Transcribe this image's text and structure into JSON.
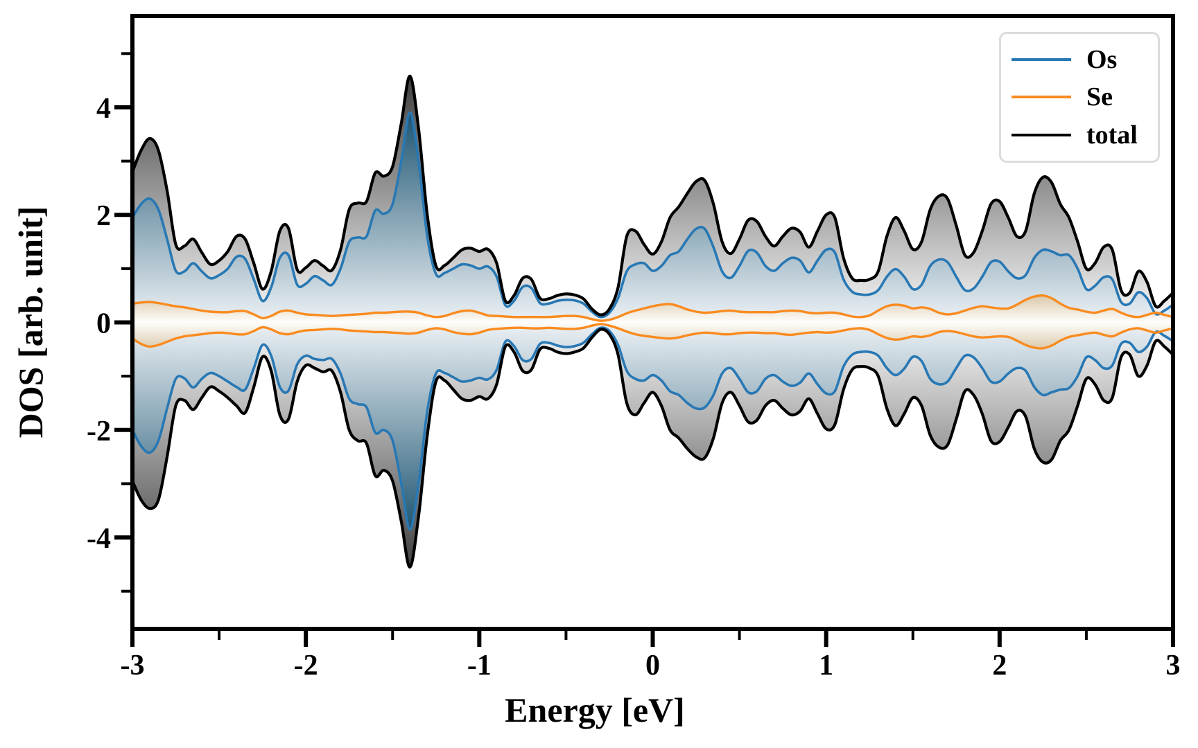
{
  "figure": {
    "background": "#ffffff",
    "xlabel": "Energy [eV]",
    "ylabel": "DOS [arb. unit]",
    "xlim": [
      -3,
      3
    ],
    "ylim": [
      -5.7,
      5.7
    ],
    "x_major_ticks": [
      -3,
      -2,
      -1,
      0,
      1,
      2,
      3
    ],
    "x_major_tick_labels": [
      "-3",
      "-2",
      "-1",
      "0",
      "1",
      "2",
      "3"
    ],
    "x_minor_ticks": [
      -2.5,
      -1.5,
      -0.5,
      0.5,
      1.5,
      2.5
    ],
    "y_major_ticks": [
      -4,
      -2,
      0,
      2,
      4
    ],
    "y_major_tick_labels": [
      "-4",
      "-2",
      "0",
      "2",
      "4"
    ],
    "y_minor_ticks": [
      -5,
      -3,
      -1,
      1,
      3,
      5
    ],
    "grid": false
  },
  "legend": {
    "position": "upper-right",
    "entries": [
      {
        "label": "Os",
        "color": "#2878b4"
      },
      {
        "label": "Se",
        "color": "#f98b20"
      },
      {
        "label": "total",
        "color": "#000000"
      }
    ]
  },
  "chart_data": {
    "type": "area",
    "title": "",
    "xlabel": "Energy [eV]",
    "ylabel": "DOS [arb. unit]",
    "description": "Spin-resolved density of states: positive values = spin-up branch, negative values = spin-down branch; gradient-filled areas under total, Os and Se curves.",
    "x": [
      -3.0,
      -2.95,
      -2.9,
      -2.85,
      -2.8,
      -2.75,
      -2.7,
      -2.65,
      -2.6,
      -2.55,
      -2.5,
      -2.45,
      -2.4,
      -2.35,
      -2.3,
      -2.25,
      -2.2,
      -2.15,
      -2.1,
      -2.05,
      -2.0,
      -1.95,
      -1.9,
      -1.85,
      -1.8,
      -1.75,
      -1.7,
      -1.65,
      -1.6,
      -1.55,
      -1.5,
      -1.45,
      -1.4,
      -1.35,
      -1.3,
      -1.25,
      -1.2,
      -1.15,
      -1.1,
      -1.05,
      -1.0,
      -0.95,
      -0.9,
      -0.85,
      -0.8,
      -0.75,
      -0.7,
      -0.65,
      -0.6,
      -0.55,
      -0.5,
      -0.45,
      -0.4,
      -0.35,
      -0.3,
      -0.25,
      -0.2,
      -0.15,
      -0.1,
      -0.05,
      0.0,
      0.05,
      0.1,
      0.15,
      0.2,
      0.25,
      0.3,
      0.35,
      0.4,
      0.45,
      0.5,
      0.55,
      0.6,
      0.65,
      0.7,
      0.75,
      0.8,
      0.85,
      0.9,
      0.95,
      1.0,
      1.05,
      1.1,
      1.15,
      1.2,
      1.25,
      1.3,
      1.35,
      1.4,
      1.45,
      1.5,
      1.55,
      1.6,
      1.65,
      1.7,
      1.75,
      1.8,
      1.85,
      1.9,
      1.95,
      2.0,
      2.05,
      2.1,
      2.15,
      2.2,
      2.25,
      2.3,
      2.35,
      2.4,
      2.45,
      2.5,
      2.55,
      2.6,
      2.65,
      2.7,
      2.75,
      2.8,
      2.85,
      2.9,
      2.95,
      3.0
    ],
    "series": [
      {
        "name": "total",
        "line_color": "#000000",
        "line_width": 4.2,
        "fill_edge_color": "#3a3a3a",
        "fill_center_color": "#fbfbfb",
        "gradient_extent": 4.7,
        "spin_up": [
          2.8,
          3.2,
          3.42,
          3.2,
          2.45,
          1.45,
          1.42,
          1.55,
          1.3,
          1.08,
          1.15,
          1.32,
          1.6,
          1.55,
          1.1,
          0.62,
          0.95,
          1.7,
          1.75,
          0.98,
          1.02,
          1.15,
          1.05,
          0.97,
          1.35,
          2.1,
          2.22,
          2.25,
          2.78,
          2.72,
          2.9,
          3.7,
          4.58,
          3.6,
          2.0,
          1.05,
          1.06,
          1.2,
          1.35,
          1.38,
          1.32,
          1.36,
          1.1,
          0.4,
          0.5,
          0.82,
          0.8,
          0.45,
          0.44,
          0.5,
          0.53,
          0.51,
          0.44,
          0.25,
          0.14,
          0.25,
          0.65,
          1.6,
          1.7,
          1.45,
          1.27,
          1.5,
          1.95,
          2.15,
          2.4,
          2.62,
          2.64,
          2.2,
          1.5,
          1.28,
          1.55,
          1.9,
          1.88,
          1.6,
          1.42,
          1.6,
          1.75,
          1.68,
          1.4,
          1.7,
          2.0,
          1.95,
          1.2,
          0.82,
          0.78,
          0.8,
          0.95,
          1.6,
          1.95,
          1.7,
          1.36,
          1.5,
          2.1,
          2.35,
          2.3,
          1.8,
          1.25,
          1.3,
          1.7,
          2.2,
          2.25,
          1.95,
          1.6,
          1.7,
          2.4,
          2.7,
          2.6,
          2.2,
          1.95,
          1.5,
          1.0,
          1.1,
          1.4,
          1.35,
          0.6,
          0.55,
          0.95,
          0.75,
          0.3,
          0.4,
          0.55
        ],
        "spin_down": [
          -2.95,
          -3.3,
          -3.46,
          -3.3,
          -2.5,
          -1.55,
          -1.45,
          -1.62,
          -1.4,
          -1.2,
          -1.28,
          -1.4,
          -1.55,
          -1.68,
          -1.2,
          -0.64,
          -0.9,
          -1.72,
          -1.8,
          -1.1,
          -0.8,
          -0.85,
          -0.92,
          -0.9,
          -1.3,
          -2.0,
          -2.2,
          -2.25,
          -2.85,
          -2.75,
          -2.95,
          -3.7,
          -4.55,
          -3.6,
          -2.1,
          -1.1,
          -1.08,
          -1.25,
          -1.42,
          -1.45,
          -1.38,
          -1.42,
          -1.15,
          -0.45,
          -0.55,
          -0.9,
          -0.88,
          -0.5,
          -0.48,
          -0.55,
          -0.58,
          -0.55,
          -0.48,
          -0.28,
          -0.13,
          -0.22,
          -0.6,
          -1.5,
          -1.72,
          -1.5,
          -1.3,
          -1.55,
          -2.0,
          -2.15,
          -2.35,
          -2.5,
          -2.52,
          -2.15,
          -1.5,
          -1.3,
          -1.55,
          -1.85,
          -1.82,
          -1.55,
          -1.45,
          -1.6,
          -1.72,
          -1.65,
          -1.42,
          -1.7,
          -1.98,
          -1.9,
          -1.25,
          -0.88,
          -0.82,
          -0.85,
          -1.0,
          -1.6,
          -1.92,
          -1.7,
          -1.4,
          -1.55,
          -2.1,
          -2.32,
          -2.28,
          -1.8,
          -1.28,
          -1.35,
          -1.7,
          -2.2,
          -2.22,
          -1.95,
          -1.65,
          -1.75,
          -2.35,
          -2.6,
          -2.55,
          -2.2,
          -2.0,
          -1.55,
          -1.05,
          -1.15,
          -1.45,
          -1.4,
          -0.65,
          -0.6,
          -1.0,
          -0.8,
          -0.35,
          -0.45,
          -0.6
        ]
      },
      {
        "name": "Os",
        "line_color": "#2878b4",
        "line_width": 3.6,
        "fill_edge_color": "#17506e",
        "fill_center_color": "#edf2f6",
        "gradient_extent": 4.0,
        "spin_up": [
          1.95,
          2.2,
          2.3,
          2.1,
          1.55,
          0.96,
          0.95,
          1.1,
          0.95,
          0.82,
          0.88,
          1.0,
          1.22,
          1.18,
          0.8,
          0.4,
          0.65,
          1.2,
          1.25,
          0.7,
          0.72,
          0.86,
          0.78,
          0.7,
          1.0,
          1.5,
          1.58,
          1.6,
          2.08,
          2.02,
          2.2,
          3.0,
          3.9,
          3.0,
          1.6,
          0.9,
          0.92,
          1.0,
          1.08,
          1.06,
          1.0,
          1.04,
          0.85,
          0.32,
          0.4,
          0.66,
          0.64,
          0.36,
          0.35,
          0.4,
          0.42,
          0.41,
          0.35,
          0.2,
          0.1,
          0.18,
          0.45,
          0.95,
          1.08,
          1.1,
          0.96,
          1.05,
          1.25,
          1.32,
          1.55,
          1.74,
          1.74,
          1.4,
          0.95,
          0.83,
          1.05,
          1.33,
          1.3,
          1.05,
          0.96,
          1.1,
          1.2,
          1.15,
          0.93,
          1.15,
          1.35,
          1.3,
          0.8,
          0.57,
          0.52,
          0.52,
          0.6,
          0.85,
          0.99,
          0.85,
          0.62,
          0.7,
          1.05,
          1.17,
          1.12,
          0.85,
          0.6,
          0.63,
          0.85,
          1.12,
          1.13,
          0.95,
          0.82,
          0.88,
          1.2,
          1.35,
          1.32,
          1.25,
          1.25,
          1.0,
          0.62,
          0.68,
          0.84,
          0.8,
          0.38,
          0.35,
          0.56,
          0.45,
          0.16,
          0.22,
          0.33
        ],
        "spin_down": [
          -2.0,
          -2.3,
          -2.42,
          -2.2,
          -1.6,
          -1.05,
          -1.04,
          -1.21,
          -1.05,
          -0.94,
          -1.0,
          -1.1,
          -1.2,
          -1.25,
          -0.85,
          -0.42,
          -0.62,
          -1.2,
          -1.27,
          -0.78,
          -0.62,
          -0.68,
          -0.7,
          -0.68,
          -0.95,
          -1.42,
          -1.52,
          -1.58,
          -2.05,
          -2.0,
          -2.2,
          -3.0,
          -3.85,
          -3.0,
          -1.65,
          -0.95,
          -0.94,
          -1.02,
          -1.1,
          -1.08,
          -1.03,
          -1.06,
          -0.88,
          -0.36,
          -0.44,
          -0.7,
          -0.68,
          -0.4,
          -0.38,
          -0.43,
          -0.46,
          -0.44,
          -0.38,
          -0.22,
          -0.1,
          -0.16,
          -0.42,
          -0.9,
          -1.05,
          -1.08,
          -0.98,
          -1.08,
          -1.28,
          -1.35,
          -1.5,
          -1.6,
          -1.58,
          -1.35,
          -0.95,
          -0.85,
          -1.05,
          -1.3,
          -1.28,
          -1.05,
          -0.98,
          -1.1,
          -1.18,
          -1.12,
          -0.95,
          -1.15,
          -1.32,
          -1.28,
          -0.82,
          -0.6,
          -0.55,
          -0.55,
          -0.62,
          -0.85,
          -0.98,
          -0.86,
          -0.64,
          -0.72,
          -1.05,
          -1.15,
          -1.1,
          -0.85,
          -0.62,
          -0.65,
          -0.85,
          -1.1,
          -1.1,
          -0.95,
          -0.85,
          -0.9,
          -1.2,
          -1.35,
          -1.3,
          -1.25,
          -1.22,
          -1.0,
          -0.65,
          -0.7,
          -0.85,
          -0.8,
          -0.4,
          -0.38,
          -0.55,
          -0.45,
          -0.18,
          -0.25,
          -0.35
        ]
      },
      {
        "name": "Se",
        "line_color": "#f98b20",
        "line_width": 3.4,
        "fill_edge_color": "#d6c3a2",
        "fill_center_color": "#fffefc",
        "gradient_extent": 0.55,
        "spin_up": [
          0.35,
          0.37,
          0.38,
          0.36,
          0.33,
          0.3,
          0.28,
          0.25,
          0.22,
          0.2,
          0.19,
          0.19,
          0.21,
          0.21,
          0.15,
          0.08,
          0.12,
          0.2,
          0.22,
          0.18,
          0.15,
          0.14,
          0.13,
          0.12,
          0.13,
          0.14,
          0.15,
          0.16,
          0.18,
          0.18,
          0.19,
          0.2,
          0.2,
          0.18,
          0.13,
          0.1,
          0.12,
          0.17,
          0.21,
          0.22,
          0.18,
          0.13,
          0.12,
          0.11,
          0.1,
          0.1,
          0.1,
          0.1,
          0.1,
          0.11,
          0.12,
          0.12,
          0.1,
          0.06,
          0.03,
          0.05,
          0.1,
          0.17,
          0.22,
          0.26,
          0.3,
          0.33,
          0.34,
          0.3,
          0.24,
          0.2,
          0.18,
          0.19,
          0.21,
          0.22,
          0.2,
          0.19,
          0.19,
          0.19,
          0.19,
          0.21,
          0.22,
          0.21,
          0.18,
          0.17,
          0.18,
          0.18,
          0.15,
          0.11,
          0.1,
          0.13,
          0.22,
          0.3,
          0.33,
          0.31,
          0.26,
          0.28,
          0.25,
          0.18,
          0.15,
          0.17,
          0.22,
          0.27,
          0.3,
          0.28,
          0.26,
          0.26,
          0.33,
          0.42,
          0.48,
          0.5,
          0.45,
          0.35,
          0.27,
          0.24,
          0.2,
          0.18,
          0.22,
          0.25,
          0.18,
          0.12,
          0.1,
          0.14,
          0.18,
          0.14,
          0.1
        ],
        "spin_down": [
          -0.3,
          -0.4,
          -0.45,
          -0.42,
          -0.36,
          -0.3,
          -0.26,
          -0.24,
          -0.22,
          -0.2,
          -0.19,
          -0.2,
          -0.22,
          -0.22,
          -0.16,
          -0.09,
          -0.13,
          -0.2,
          -0.22,
          -0.18,
          -0.15,
          -0.14,
          -0.13,
          -0.12,
          -0.13,
          -0.15,
          -0.16,
          -0.17,
          -0.18,
          -0.18,
          -0.19,
          -0.2,
          -0.21,
          -0.19,
          -0.14,
          -0.11,
          -0.13,
          -0.18,
          -0.21,
          -0.22,
          -0.19,
          -0.14,
          -0.12,
          -0.11,
          -0.1,
          -0.1,
          -0.11,
          -0.11,
          -0.1,
          -0.11,
          -0.12,
          -0.12,
          -0.1,
          -0.06,
          -0.03,
          -0.06,
          -0.11,
          -0.17,
          -0.22,
          -0.25,
          -0.27,
          -0.29,
          -0.3,
          -0.28,
          -0.24,
          -0.21,
          -0.19,
          -0.2,
          -0.22,
          -0.22,
          -0.2,
          -0.19,
          -0.19,
          -0.2,
          -0.2,
          -0.22,
          -0.23,
          -0.21,
          -0.19,
          -0.18,
          -0.19,
          -0.18,
          -0.15,
          -0.12,
          -0.11,
          -0.14,
          -0.22,
          -0.29,
          -0.32,
          -0.3,
          -0.26,
          -0.27,
          -0.24,
          -0.18,
          -0.16,
          -0.18,
          -0.22,
          -0.26,
          -0.28,
          -0.27,
          -0.26,
          -0.27,
          -0.34,
          -0.42,
          -0.47,
          -0.48,
          -0.43,
          -0.34,
          -0.27,
          -0.24,
          -0.21,
          -0.19,
          -0.23,
          -0.26,
          -0.19,
          -0.13,
          -0.11,
          -0.15,
          -0.19,
          -0.15,
          -0.11
        ]
      }
    ]
  }
}
